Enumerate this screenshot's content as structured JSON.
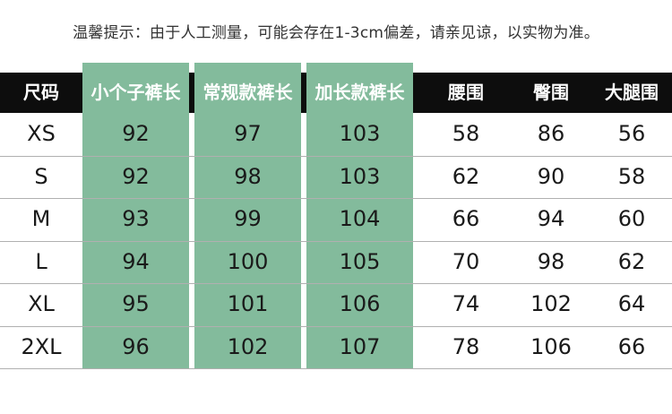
{
  "note": "温馨提示：由于人工测量，可能会存在1-3cm偏差，请亲见谅，以实物为准。",
  "headers": [
    "尺码",
    "小个子裤长",
    "常规款裤长",
    "加长款裤长",
    "腰围",
    "臀围",
    "大腿围"
  ],
  "highlight_color": "#83bb9c",
  "header_color": "#0d0d0d",
  "rows": [
    [
      "XS",
      "92",
      "97",
      "103",
      "58",
      "86",
      "56"
    ],
    [
      "S",
      "92",
      "98",
      "103",
      "62",
      "90",
      "58"
    ],
    [
      "M",
      "93",
      "99",
      "104",
      "66",
      "94",
      "60"
    ],
    [
      "L",
      "94",
      "100",
      "105",
      "70",
      "98",
      "62"
    ],
    [
      "XL",
      "95",
      "101",
      "106",
      "74",
      "102",
      "64"
    ],
    [
      "2XL",
      "96",
      "102",
      "107",
      "78",
      "106",
      "66"
    ]
  ]
}
